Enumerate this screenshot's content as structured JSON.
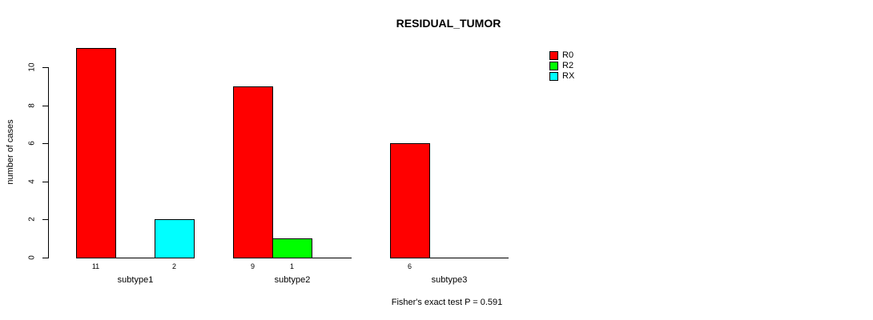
{
  "chart": {
    "title": "RESIDUAL_TUMOR",
    "ylabel": "number of cases",
    "footer": "Fisher's exact test P = 0.591"
  },
  "chart_data": {
    "type": "bar",
    "title": "RESIDUAL_TUMOR",
    "xlabel": "",
    "ylabel": "number of cases",
    "categories": [
      "subtype1",
      "subtype2",
      "subtype3"
    ],
    "series": [
      {
        "name": "R0",
        "color": "#FF0000",
        "values": [
          11,
          9,
          6
        ]
      },
      {
        "name": "R2",
        "color": "#00FF00",
        "values": [
          0,
          1,
          0
        ]
      },
      {
        "name": "RX",
        "color": "#00FFFF",
        "values": [
          2,
          0,
          0
        ]
      }
    ],
    "bar_value_labels_shown_for_nonzero": true,
    "yticks": [
      0,
      2,
      4,
      6,
      8,
      10
    ],
    "ylim": [
      0,
      10
    ],
    "grid": false,
    "legend_position": "top-right",
    "legend": [
      {
        "label": "R0",
        "color": "#FF0000"
      },
      {
        "label": "R2",
        "color": "#00FF00"
      },
      {
        "label": "RX",
        "color": "#00FFFF"
      }
    ],
    "annotation": "Fisher's exact test P = 0.591"
  }
}
